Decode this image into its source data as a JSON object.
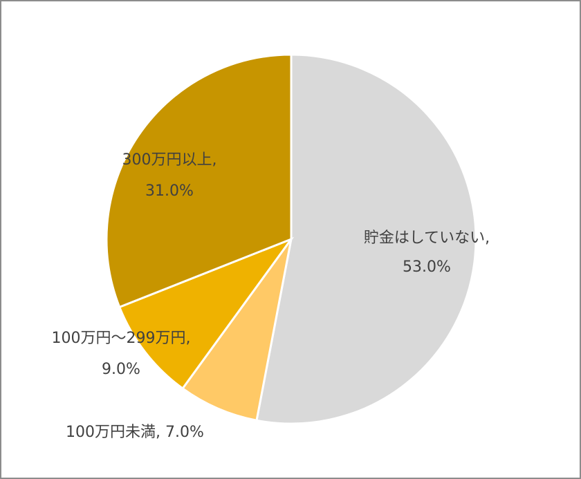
{
  "chart_data": {
    "type": "pie",
    "categories": [
      "貯金はしていない",
      "100万円未満",
      "100万円～299万円",
      "300万円以上"
    ],
    "values": [
      53.0,
      7.0,
      9.0,
      31.0
    ],
    "value_labels": [
      "53.0%",
      "7.0%",
      "9.0%",
      "31.0%"
    ],
    "label_separator": ",",
    "colors": [
      "#d9d9d9",
      "#ffc966",
      "#efb200",
      "#c79500"
    ]
  }
}
